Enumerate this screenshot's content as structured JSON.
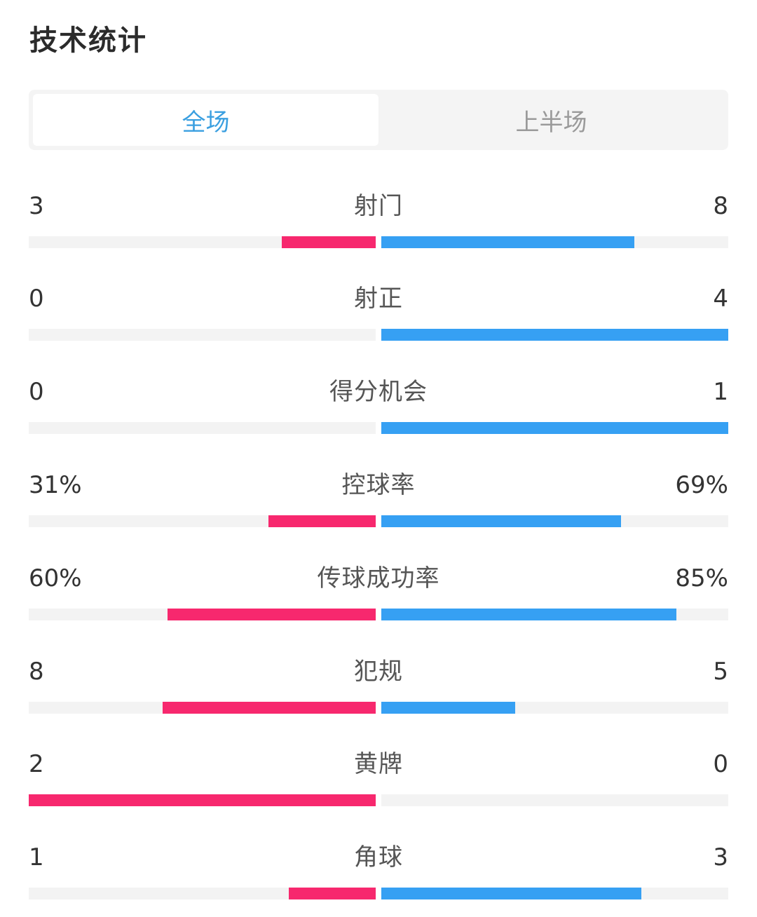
{
  "header": {
    "title": "技术统计"
  },
  "tabs": [
    {
      "label": "全场",
      "active": true
    },
    {
      "label": "上半场",
      "active": false
    }
  ],
  "colors": {
    "home": "#f7286e",
    "away": "#36a0f3",
    "tab_active": "#3a9fe0"
  },
  "stats": [
    {
      "label": "射门",
      "home": "3",
      "away": "8",
      "home_ratio": 0.27,
      "away_ratio": 0.73
    },
    {
      "label": "射正",
      "home": "0",
      "away": "4",
      "home_ratio": 0.0,
      "away_ratio": 1.0
    },
    {
      "label": "得分机会",
      "home": "0",
      "away": "1",
      "home_ratio": 0.0,
      "away_ratio": 1.0
    },
    {
      "label": "控球率",
      "home": "31%",
      "away": "69%",
      "home_ratio": 0.31,
      "away_ratio": 0.69
    },
    {
      "label": "传球成功率",
      "home": "60%",
      "away": "85%",
      "home_ratio": 0.6,
      "away_ratio": 0.85
    },
    {
      "label": "犯规",
      "home": "8",
      "away": "5",
      "home_ratio": 0.615,
      "away_ratio": 0.385
    },
    {
      "label": "黄牌",
      "home": "2",
      "away": "0",
      "home_ratio": 1.0,
      "away_ratio": 0.0
    },
    {
      "label": "角球",
      "home": "1",
      "away": "3",
      "home_ratio": 0.25,
      "away_ratio": 0.75
    }
  ]
}
